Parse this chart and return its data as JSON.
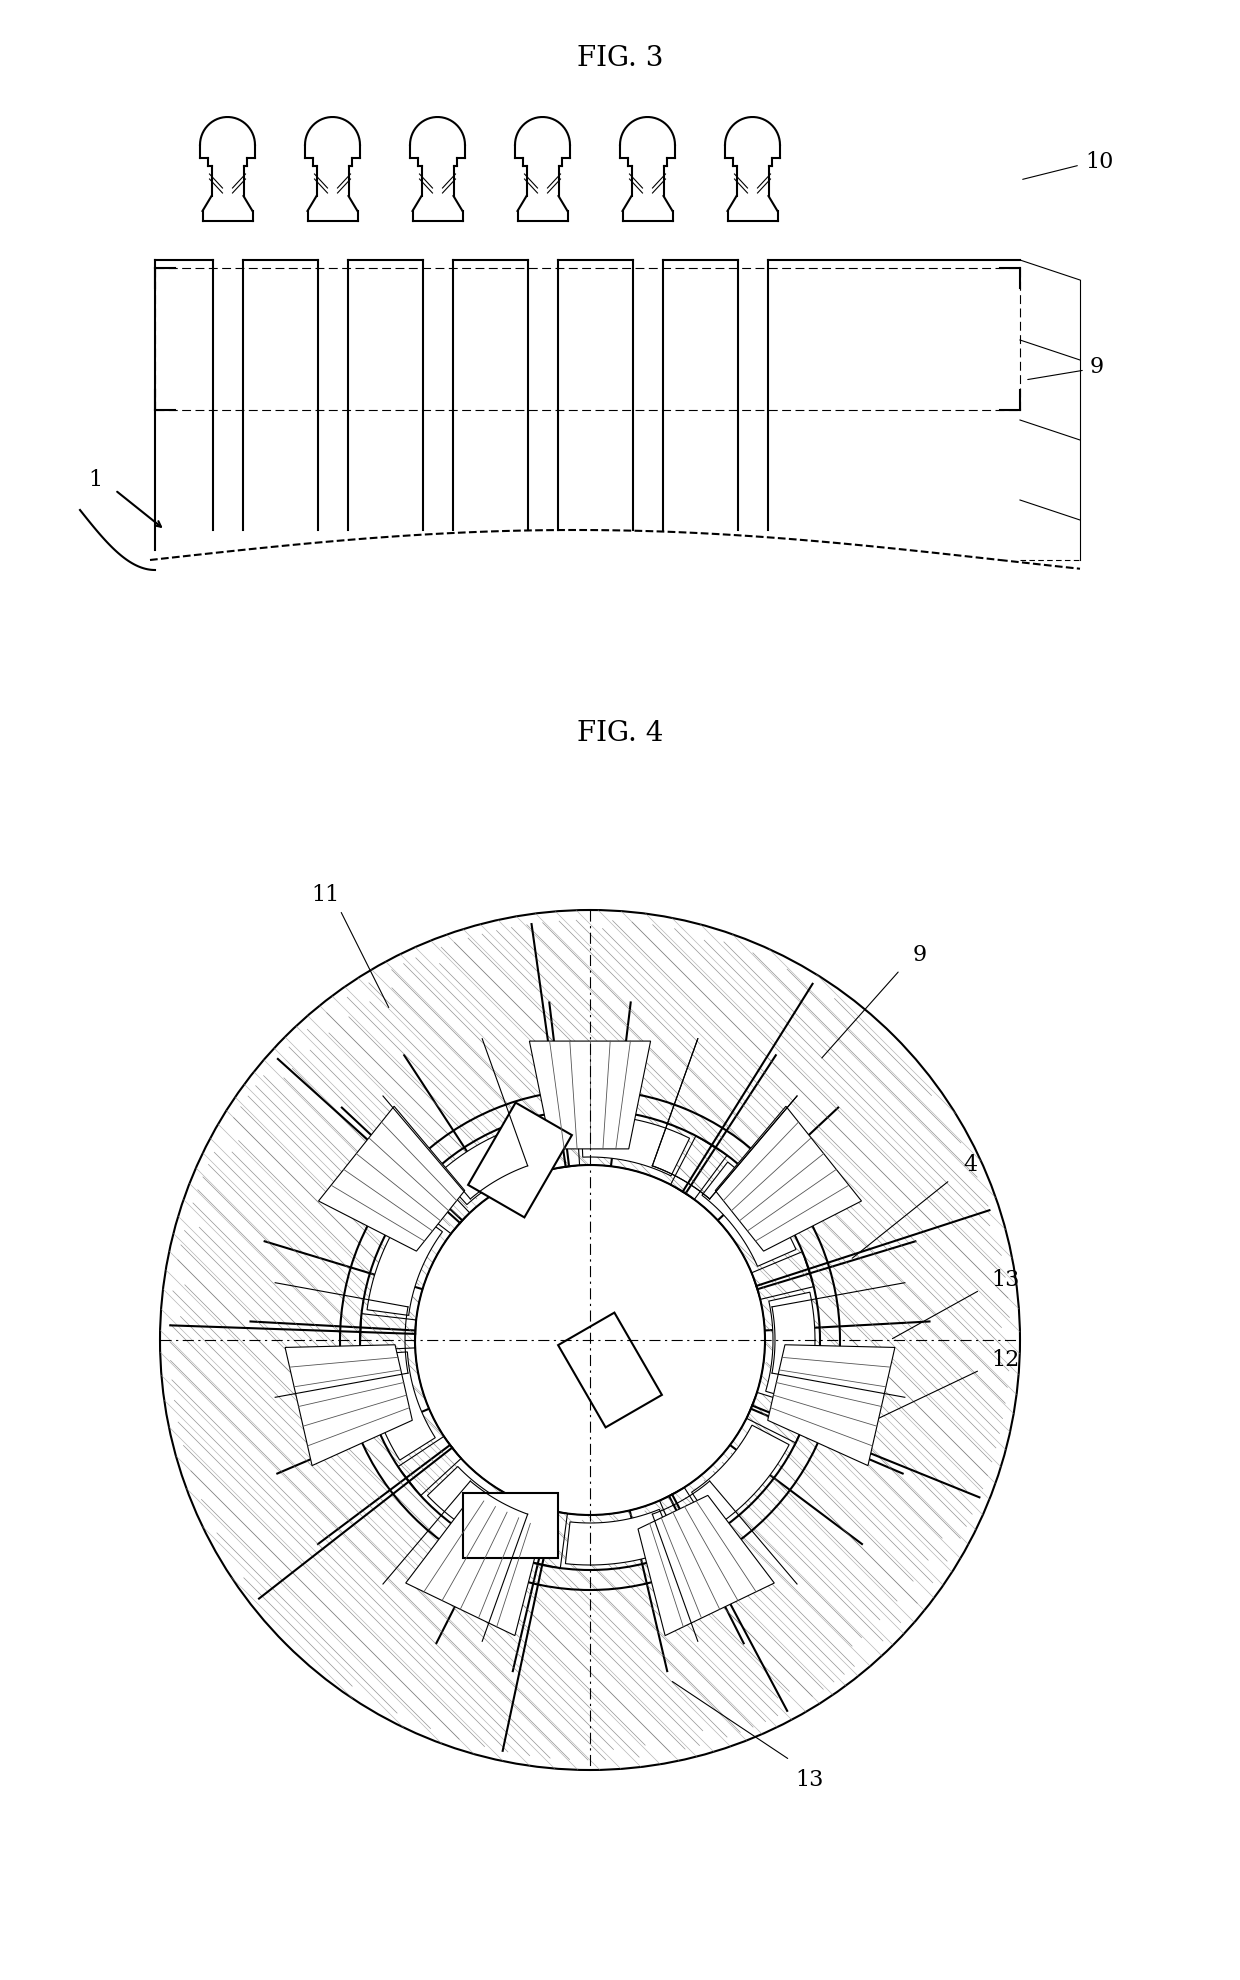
{
  "fig3_title": "FIG. 3",
  "fig4_title": "FIG. 4",
  "bg_color": "#ffffff",
  "line_color": "#000000",
  "label_1": "1",
  "label_9_fig3": "9",
  "label_10": "10",
  "label_4": "4",
  "label_9_fig4": "9",
  "label_11": "11",
  "label_12": "12",
  "label_13a": "13",
  "label_13b": "13",
  "title_fontsize": 20,
  "label_fontsize": 16
}
